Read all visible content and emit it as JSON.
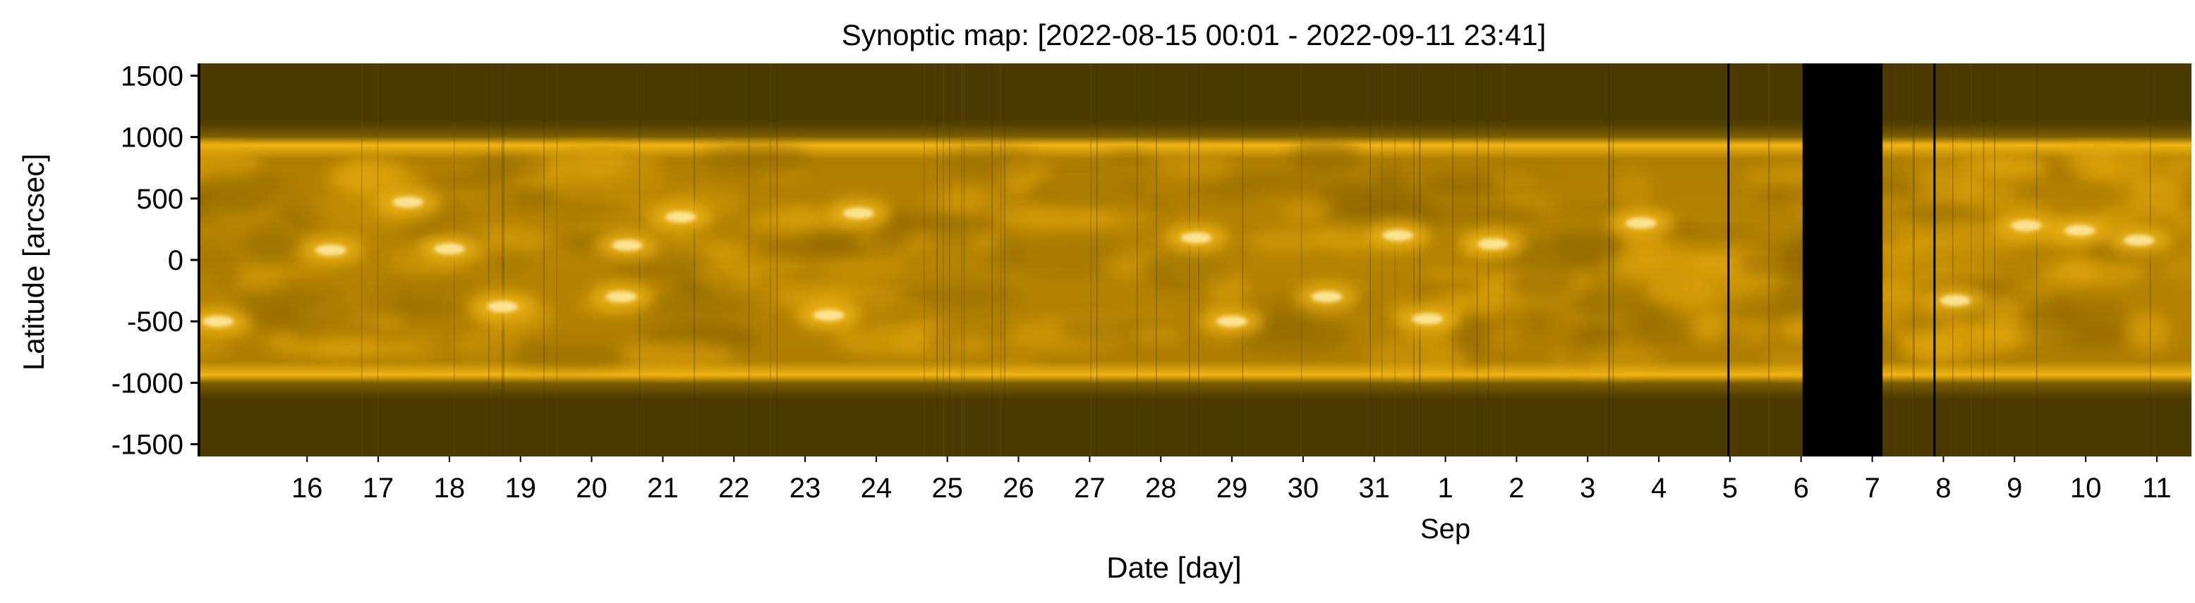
{
  "chart_data": {
    "type": "heatmap",
    "title": "Synoptic map: [2022-08-15 00:01 - 2022-09-11 23:41]",
    "xlabel": "Date [day]",
    "ylabel": "Latitude [arcsec]",
    "x_range": [
      "2022-08-15 00:01",
      "2022-09-11 23:41"
    ],
    "ylim": [
      -1600,
      1600
    ],
    "yticks": [
      1500,
      1000,
      500,
      0,
      -500,
      -1000,
      -1500
    ],
    "ytick_labels": [
      "1500",
      "1000",
      "500",
      "0",
      "-500",
      "-1000",
      "-1500"
    ],
    "xticks": [
      "2022-08-16",
      "2022-08-17",
      "2022-08-18",
      "2022-08-19",
      "2022-08-20",
      "2022-08-21",
      "2022-08-22",
      "2022-08-23",
      "2022-08-24",
      "2022-08-25",
      "2022-08-26",
      "2022-08-27",
      "2022-08-28",
      "2022-08-29",
      "2022-08-30",
      "2022-08-31",
      "2022-09-01",
      "2022-09-02",
      "2022-09-03",
      "2022-09-04",
      "2022-09-05",
      "2022-09-06",
      "2022-09-07",
      "2022-09-08",
      "2022-09-09",
      "2022-09-10",
      "2022-09-11"
    ],
    "xtick_labels": [
      "16",
      "17",
      "18",
      "19",
      "20",
      "21",
      "22",
      "23",
      "24",
      "25",
      "26",
      "27",
      "28",
      "29",
      "30",
      "31",
      "1",
      "2",
      "3",
      "4",
      "5",
      "6",
      "7",
      "8",
      "9",
      "10",
      "11"
    ],
    "month_label": {
      "date": "2022-09-01",
      "text": "Sep"
    },
    "solar_limb_latitude": [
      960,
      -960
    ],
    "data_gaps": [
      {
        "start": "2022-09-06 12:30",
        "end": "2022-09-07 15:30"
      }
    ],
    "thin_gap_lines": [
      "2022-09-05 11:30",
      "2022-09-08 09:00"
    ],
    "bright_regions": [
      {
        "date": "2022-08-15 06:00",
        "lat": -500
      },
      {
        "date": "2022-08-16 20:00",
        "lat": 80
      },
      {
        "date": "2022-08-17 22:00",
        "lat": 470
      },
      {
        "date": "2022-08-18 12:00",
        "lat": 90
      },
      {
        "date": "2022-08-19 06:00",
        "lat": -380
      },
      {
        "date": "2022-08-20 22:00",
        "lat": -300
      },
      {
        "date": "2022-08-21 00:00",
        "lat": 120
      },
      {
        "date": "2022-08-21 18:00",
        "lat": 350
      },
      {
        "date": "2022-08-23 20:00",
        "lat": -450
      },
      {
        "date": "2022-08-24 06:00",
        "lat": 380
      },
      {
        "date": "2022-08-29 00:00",
        "lat": 180
      },
      {
        "date": "2022-08-29 12:00",
        "lat": -500
      },
      {
        "date": "2022-08-30 20:00",
        "lat": -300
      },
      {
        "date": "2022-08-31 20:00",
        "lat": 200
      },
      {
        "date": "2022-09-01 06:00",
        "lat": -480
      },
      {
        "date": "2022-09-02 04:00",
        "lat": 130
      },
      {
        "date": "2022-09-04 06:00",
        "lat": 300
      },
      {
        "date": "2022-09-08 16:00",
        "lat": -330
      },
      {
        "date": "2022-09-09 16:00",
        "lat": 280
      },
      {
        "date": "2022-09-10 10:00",
        "lat": 240
      },
      {
        "date": "2022-09-11 06:00",
        "lat": 160
      }
    ],
    "colormap": {
      "dark": "#4c3a00",
      "mid": "#b07f00",
      "bright": "#f0b414",
      "highlight": "#ffe9a0",
      "gap": "#000000"
    },
    "grid": false
  }
}
